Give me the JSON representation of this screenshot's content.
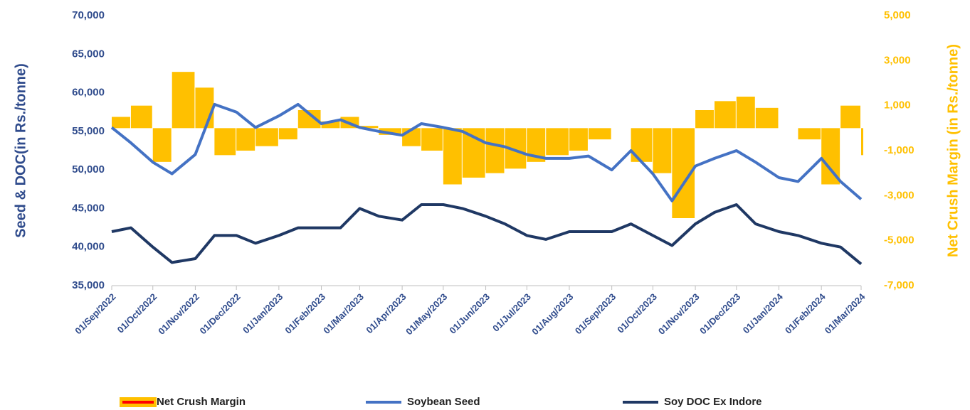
{
  "chart_data": {
    "type": "line",
    "x": [
      "01/Sep/2022",
      "15/Sep/2022",
      "01/Oct/2022",
      "15/Oct/2022",
      "01/Nov/2022",
      "15/Nov/2022",
      "01/Dec/2022",
      "15/Dec/2022",
      "01/Jan/2023",
      "15/Jan/2023",
      "01/Feb/2023",
      "15/Feb/2023",
      "01/Mar/2023",
      "15/Mar/2023",
      "01/Apr/2023",
      "15/Apr/2023",
      "01/May/2023",
      "15/May/2023",
      "01/Jun/2023",
      "15/Jun/2023",
      "01/Jul/2023",
      "15/Jul/2023",
      "01/Aug/2023",
      "15/Aug/2023",
      "01/Sep/2023",
      "15/Sep/2023",
      "01/Oct/2023",
      "15/Oct/2023",
      "01/Nov/2023",
      "15/Nov/2023",
      "01/Dec/2023",
      "15/Dec/2023",
      "01/Jan/2024",
      "15/Jan/2024",
      "01/Feb/2024",
      "15/Feb/2024",
      "01/Mar/2024"
    ],
    "xticks": [
      "01/Sep/2022",
      "01/Oct/2022",
      "01/Nov/2022",
      "01/Dec/2022",
      "01/Jan/2023",
      "01/Feb/2023",
      "01/Mar/2023",
      "01/Apr/2023",
      "01/May/2023",
      "01/Jun/2023",
      "01/Jul/2023",
      "01/Aug/2023",
      "01/Sep/2023",
      "01/Oct/2023",
      "01/Nov/2023",
      "01/Dec/2023",
      "01/Jan/2024",
      "01/Feb/2024",
      "01/Mar/2024"
    ],
    "y_label": "Seed & DOC(in Rs./tonne)",
    "y2_label": "Net Crush Margin (in Rs./tonne)",
    "ylim": [
      35000,
      70000
    ],
    "yticks": [
      {
        "value": 35000,
        "label": "35,000"
      },
      {
        "value": 40000,
        "label": "40,000"
      },
      {
        "value": 45000,
        "label": "45,000"
      },
      {
        "value": 50000,
        "label": "50,000"
      },
      {
        "value": 55000,
        "label": "55,000"
      },
      {
        "value": 60000,
        "label": "60,000"
      },
      {
        "value": 65000,
        "label": "65,000"
      },
      {
        "value": 70000,
        "label": "70,000"
      }
    ],
    "y2lim": [
      -7000,
      5000
    ],
    "y2ticks": [
      {
        "value": -7000,
        "label": "-7,000"
      },
      {
        "value": -5000,
        "label": "-5,000"
      },
      {
        "value": -3000,
        "label": "-3,000"
      },
      {
        "value": -1000,
        "label": "-1,000"
      },
      {
        "value": 1000,
        "label": "1,000"
      },
      {
        "value": 3000,
        "label": "3,000"
      },
      {
        "value": 5000,
        "label": "5,000"
      }
    ],
    "series": [
      {
        "name": "Net Crush Margin",
        "type": "bar",
        "axis": "y2",
        "color": "#ffc000",
        "values": [
          500,
          1000,
          -1500,
          2500,
          1800,
          -1200,
          -1000,
          -800,
          -500,
          800,
          300,
          500,
          100,
          -300,
          -800,
          -1000,
          -2500,
          -2200,
          -2000,
          -1800,
          -1500,
          -1200,
          -1000,
          -500,
          0,
          -1500,
          -2000,
          -4000,
          800,
          1200,
          1400,
          900,
          0,
          -500,
          -2500,
          1000,
          -1200
        ]
      },
      {
        "name": "Soybean Seed",
        "type": "line",
        "color": "#4472c4",
        "values": [
          55500,
          53500,
          51000,
          49500,
          52000,
          58500,
          57500,
          55500,
          57000,
          58500,
          56000,
          56500,
          55500,
          55000,
          54500,
          56000,
          55500,
          55000,
          53500,
          53000,
          52000,
          51500,
          51500,
          51800,
          50000,
          52500,
          49500,
          46000,
          50500,
          51500,
          52500,
          51000,
          49000,
          48500,
          51500,
          48500,
          46200
        ]
      },
      {
        "name": "Soy DOC Ex Indore",
        "type": "line",
        "color": "#1f3864",
        "values": [
          42000,
          42500,
          40000,
          38000,
          38500,
          41500,
          41500,
          40500,
          41500,
          42500,
          42500,
          42500,
          45000,
          44000,
          43500,
          45500,
          45500,
          45000,
          44000,
          43000,
          41500,
          41000,
          42000,
          42000,
          42000,
          43000,
          41500,
          40200,
          43000,
          44500,
          45500,
          43000,
          42000,
          41500,
          40500,
          40000,
          37800
        ]
      }
    ]
  }
}
